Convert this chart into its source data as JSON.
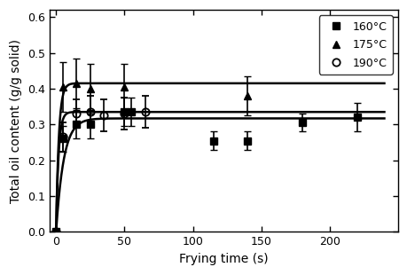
{
  "title": "",
  "xlabel": "Frying time (s)",
  "ylabel": "Total oil content (g/g solid)",
  "xlim": [
    -5,
    250
  ],
  "ylim": [
    0.0,
    0.62
  ],
  "xticks": [
    0,
    50,
    100,
    150,
    200
  ],
  "yticks": [
    0.0,
    0.1,
    0.2,
    0.3,
    0.4,
    0.5,
    0.6
  ],
  "s160": {
    "x": [
      0,
      5,
      15,
      25,
      50,
      55,
      115,
      140,
      180,
      220
    ],
    "y": [
      0,
      0.26,
      0.3,
      0.3,
      0.335,
      0.335,
      0.255,
      0.255,
      0.305,
      0.32
    ],
    "yerr": [
      0,
      0.035,
      0.04,
      0.04,
      0.04,
      0.04,
      0.025,
      0.025,
      0.025,
      0.04
    ],
    "label": "160°C",
    "marker": "s"
  },
  "s175": {
    "x": [
      0,
      5,
      15,
      25,
      50,
      140
    ],
    "y": [
      0,
      0.405,
      0.415,
      0.4,
      0.405,
      0.38
    ],
    "yerr": [
      0,
      0.07,
      0.07,
      0.07,
      0.065,
      0.055
    ],
    "label": "175°C",
    "marker": "^"
  },
  "s190": {
    "x": [
      0,
      5,
      15,
      25,
      35,
      50,
      65
    ],
    "y": [
      0,
      0.265,
      0.33,
      0.335,
      0.325,
      0.33,
      0.335
    ],
    "yerr": [
      0,
      0.04,
      0.04,
      0.045,
      0.045,
      0.045,
      0.045
    ],
    "label": "190°C",
    "marker": "o",
    "fillstyle": "none"
  },
  "model160_params": {
    "C": 0.317,
    "k": 0.18
  },
  "model175_params": {
    "C": 0.415,
    "k": 0.5
  },
  "model190_params": {
    "C": 0.335,
    "k": 0.55
  },
  "legend_fontsize": 9,
  "axis_fontsize": 10,
  "tick_fontsize": 9,
  "markersize": 6,
  "linewidth": 1.8,
  "capsize": 3,
  "elinewidth": 1.2
}
